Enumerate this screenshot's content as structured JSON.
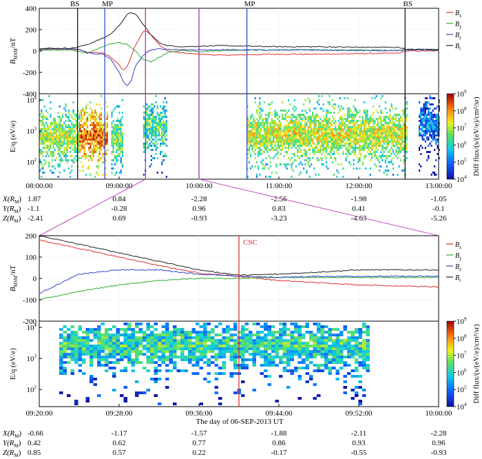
{
  "chart_data": [
    {
      "type": "line",
      "panel": "top-field",
      "ylabel": "B_MSM/nT",
      "ylim": [
        -400,
        400
      ],
      "yticks": [
        400,
        200,
        0,
        -200,
        -400
      ],
      "xlim_hours": [
        8.0,
        13.0
      ],
      "grid": true,
      "legend": "right",
      "series": [
        {
          "name": "Bx",
          "color": "#e03030",
          "x": [
            8.0,
            8.3,
            8.45,
            8.5,
            8.6,
            8.8,
            8.9,
            9.0,
            9.05,
            9.1,
            9.15,
            9.2,
            9.3,
            9.33,
            9.4,
            9.5,
            9.6,
            9.8,
            10.0,
            10.3,
            10.6,
            11.0,
            11.5,
            12.0,
            12.5,
            12.6,
            13.0
          ],
          "y": [
            15,
            15,
            12,
            10,
            -10,
            -20,
            -60,
            -130,
            -180,
            -150,
            -50,
            50,
            180,
            190,
            150,
            60,
            0,
            -20,
            -30,
            -40,
            -35,
            -30,
            -30,
            -25,
            -20,
            0,
            0
          ]
        },
        {
          "name": "By",
          "color": "#2eaa2e",
          "x": [
            8.0,
            8.4,
            8.5,
            8.6,
            8.8,
            8.9,
            9.0,
            9.1,
            9.2,
            9.3,
            9.4,
            9.5,
            9.6,
            9.7,
            9.8,
            10.0,
            10.3,
            10.6,
            11.0,
            11.5,
            12.0,
            12.5,
            12.6,
            13.0
          ],
          "y": [
            10,
            10,
            -5,
            -20,
            40,
            70,
            80,
            60,
            0,
            -80,
            -100,
            -60,
            -20,
            0,
            5,
            -5,
            5,
            10,
            10,
            10,
            10,
            5,
            15,
            15
          ]
        },
        {
          "name": "Bz",
          "color": "#3040c8",
          "x": [
            8.0,
            8.4,
            8.5,
            8.6,
            8.8,
            8.9,
            9.0,
            9.05,
            9.1,
            9.15,
            9.2,
            9.3,
            9.4,
            9.5,
            9.6,
            9.8,
            10.0,
            10.3,
            10.6,
            11.0,
            11.5,
            12.0,
            12.5,
            12.6,
            13.0
          ],
          "y": [
            20,
            20,
            15,
            -20,
            -30,
            -80,
            -200,
            -280,
            -330,
            -280,
            -150,
            -40,
            10,
            20,
            15,
            10,
            10,
            12,
            10,
            10,
            10,
            5,
            5,
            10,
            10
          ]
        },
        {
          "name": "Bt",
          "color": "#202020",
          "x": [
            8.0,
            8.3,
            8.45,
            8.5,
            8.6,
            8.8,
            8.9,
            9.0,
            9.1,
            9.15,
            9.2,
            9.3,
            9.4,
            9.5,
            9.6,
            9.8,
            10.0,
            10.3,
            10.6,
            11.0,
            11.5,
            12.0,
            12.5,
            12.6,
            13.0
          ],
          "y": [
            25,
            25,
            30,
            40,
            60,
            120,
            160,
            240,
            340,
            360,
            350,
            250,
            150,
            80,
            50,
            40,
            45,
            50,
            45,
            40,
            40,
            35,
            35,
            15,
            15
          ]
        }
      ],
      "annotations": [
        "BS",
        "MP",
        "MP",
        "BS"
      ]
    },
    {
      "type": "heatmap",
      "panel": "top-spectrogram",
      "ylabel": "E/q (eV/e)",
      "ylog": true,
      "yticks": [
        "10^4",
        "10^3",
        "10^2"
      ],
      "xlim_hours": [
        8.0,
        13.0
      ],
      "xticks": [
        "08:00:00",
        "09:00:00",
        "10:00:00",
        "11:00:00",
        "12:00:00",
        "13:00:00"
      ],
      "colorbar_label": "Diff flux/(s/(eV/e)/cm^2/sr)",
      "colorbar_ticks": [
        "10^9",
        "10^8",
        "10^7",
        "10^6",
        "10^5",
        "10^4"
      ],
      "regions": [
        {
          "x": [
            8.0,
            8.5
          ],
          "energy_peak": 700,
          "level": 0.6
        },
        {
          "x": [
            8.5,
            8.85
          ],
          "energy_peak": 800,
          "level": 0.85
        },
        {
          "x": [
            8.9,
            9.05
          ],
          "energy_peak": 600,
          "level": 0.55
        },
        {
          "x": [
            9.3,
            9.6
          ],
          "energy_peak": 1500,
          "level": 0.5
        },
        {
          "x": [
            10.6,
            12.6
          ],
          "energy_peak": 900,
          "level": 0.65
        },
        {
          "x": [
            12.75,
            13.0
          ],
          "energy_peak": 2000,
          "level": 0.25
        }
      ]
    },
    {
      "type": "line",
      "panel": "bottom-field",
      "ylabel": "B_MSM/nT",
      "ylim": [
        -200,
        200
      ],
      "yticks": [
        200,
        100,
        0,
        -100,
        -200
      ],
      "xlim_minutes": [
        560,
        600
      ],
      "grid": true,
      "legend": "right",
      "annotation": {
        "label": "CSC",
        "x": 580.0,
        "color": "#e02020"
      },
      "series": [
        {
          "name": "Bx",
          "color": "#e03030",
          "x": [
            560,
            564,
            568,
            572,
            576,
            580,
            584,
            588,
            592,
            596,
            600
          ],
          "y": [
            180,
            140,
            100,
            60,
            25,
            10,
            -10,
            -20,
            -30,
            -35,
            -40
          ]
        },
        {
          "name": "By",
          "color": "#2eaa2e",
          "x": [
            560,
            564,
            568,
            572,
            576,
            580,
            584,
            588,
            592,
            596,
            600
          ],
          "y": [
            -100,
            -60,
            -30,
            -10,
            0,
            0,
            5,
            5,
            5,
            5,
            5
          ]
        },
        {
          "name": "Bz",
          "color": "#3040c8",
          "x": [
            560,
            564,
            568,
            572,
            576,
            580,
            584,
            588,
            592,
            596,
            600
          ],
          "y": [
            -70,
            20,
            40,
            40,
            20,
            10,
            5,
            10,
            10,
            10,
            10
          ]
        },
        {
          "name": "Bt",
          "color": "#202020",
          "x": [
            560,
            564,
            568,
            572,
            576,
            580,
            584,
            588,
            592,
            596,
            600
          ],
          "y": [
            200,
            160,
            120,
            80,
            40,
            15,
            20,
            30,
            40,
            40,
            40
          ]
        }
      ]
    },
    {
      "type": "heatmap",
      "panel": "bottom-spectrogram",
      "ylabel": "E/q (eV/e)",
      "ylog": true,
      "yticks": [
        "10^4",
        "10^3",
        "10^2"
      ],
      "xlim_minutes": [
        560,
        600
      ],
      "xticks": [
        "09:20:00",
        "09:28:00",
        "09:36:00",
        "09:44:00",
        "09:52:00",
        "10:00:00"
      ],
      "xlabel": "The day of   06-SEP-2013 UT",
      "colorbar_label": "Diff flux/(s/(eV/e)/cm^2/sr)",
      "colorbar_ticks": [
        "10^9",
        "10^8",
        "10^7",
        "10^6",
        "10^5",
        "10^4"
      ],
      "regions": [
        {
          "x": [
            562,
            593
          ],
          "energy_peak": 3000,
          "level": 0.45
        }
      ]
    }
  ],
  "legend_labels": [
    "B",
    "B",
    "B",
    "B"
  ],
  "legend_subs": [
    "x",
    "y",
    "z",
    "t"
  ],
  "top_annotations": [
    "BS",
    "MP",
    "MP",
    "BS"
  ],
  "top_xticks": [
    "08:00:00",
    "09:00:00",
    "10:00:00",
    "11:00:00",
    "12:00:00",
    "13:00:00"
  ],
  "top_yticks_field": [
    "400",
    "200",
    "0",
    "-200",
    "-400"
  ],
  "top_ylabel_field": "B",
  "top_ylabel_field_sub": "MSM",
  "top_ylabel_field_unit": "/nT",
  "ylabel_spec": "E/q (eV/e)",
  "spec_yticks": [
    "10",
    "10",
    "10"
  ],
  "spec_yticks_exp": [
    "4",
    "3",
    "2"
  ],
  "colorbar_base": "10",
  "colorbar_exps": [
    "9",
    "8",
    "7",
    "6",
    "5",
    "4"
  ],
  "colorbar_label": "Diff flux/(s/(eV/e)/cm²/sr)",
  "bottom_yticks_field": [
    "200",
    "100",
    "0",
    "-100",
    "-200"
  ],
  "bottom_xticks": [
    "09:20:00",
    "09:28:00",
    "09:36:00",
    "09:44:00",
    "09:52:00",
    "10:00:00"
  ],
  "bottom_xlabel": "The day of   06-SEP-2013 UT",
  "csc_label": "CSC",
  "top_orbit": {
    "rows": [
      "X(R",
      "Y(R",
      "Z(R"
    ],
    "row_sub": "M",
    "X": [
      "1.87",
      "0.84",
      "-2.28",
      "-2.56",
      "-1.98",
      "-1.05"
    ],
    "Y": [
      "-1.1",
      "-0.28",
      "0.96",
      "0.83",
      "0.41",
      "-0.1"
    ],
    "Z": [
      "-2.41",
      "0.69",
      "-0.93",
      "-3.23",
      "-4.63",
      "-5.26"
    ]
  },
  "bottom_orbit": {
    "X": [
      "-0.66",
      "-1.17",
      "-1.57",
      "-1.88",
      "-2.11",
      "-2.28"
    ],
    "Y": [
      "0.42",
      "0.62",
      "0.77",
      "0.86",
      "0.93",
      "0.96"
    ],
    "Z": [
      "0.85",
      "0.57",
      "0.22",
      "-0.17",
      "-0.55",
      "-0.93"
    ]
  },
  "colors": {
    "bx": "#e03030",
    "by": "#2eaa2e",
    "bz": "#3040c8",
    "bt": "#202020",
    "mp_line": "#2040c0",
    "interval_line": "#a020a0",
    "csc_line": "#e02020",
    "zoom_connector": "#c050c0"
  }
}
